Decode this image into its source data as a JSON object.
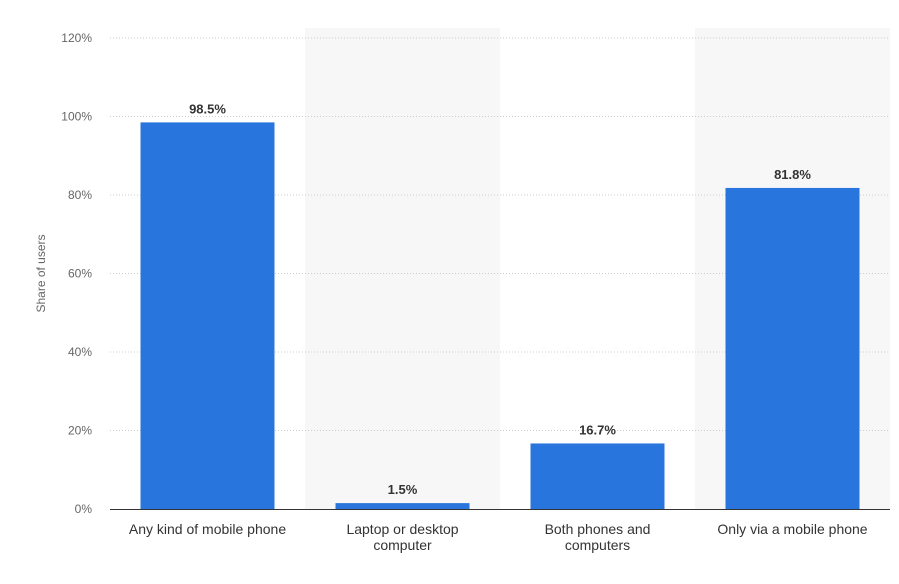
{
  "chart_data": {
    "type": "bar",
    "title": "",
    "xlabel": "",
    "ylabel": "Share of users",
    "categories": [
      [
        "Any kind of mobile phone"
      ],
      [
        "Laptop or desktop",
        "computer"
      ],
      [
        "Both phones and",
        "computers"
      ],
      [
        "Only via a mobile phone"
      ]
    ],
    "values": [
      98.5,
      1.5,
      16.7,
      81.8
    ],
    "data_labels": [
      "98.5%",
      "1.5%",
      "16.7%",
      "81.8%"
    ],
    "ylim": [
      0,
      120
    ],
    "yticks": [
      0,
      20,
      40,
      60,
      80,
      100,
      120
    ],
    "ytick_labels": [
      "0%",
      "20%",
      "40%",
      "60%",
      "80%",
      "100%",
      "120%"
    ],
    "grid": true,
    "legend": "none",
    "colors": {
      "bar": "#2876dd",
      "band": "#f7f7f7",
      "grid": "#cccccc",
      "axis": "#333333"
    }
  }
}
